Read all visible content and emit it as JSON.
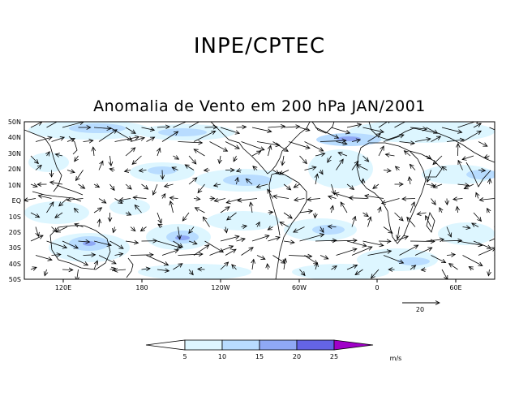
{
  "header": {
    "title": "INPE/CPTEC",
    "subtitle": "Anomalia de Vento em 200 hPa JAN/2001"
  },
  "map": {
    "lat_labels": [
      "50N",
      "40N",
      "30N",
      "20N",
      "10N",
      "EQ",
      "10S",
      "20S",
      "30S",
      "40S",
      "50S"
    ],
    "lon_labels": [
      "120E",
      "180",
      "120W",
      "60W",
      "0",
      "60E"
    ]
  },
  "reference_vector": {
    "label": "20"
  },
  "colorbar": {
    "ticks": [
      "5",
      "10",
      "15",
      "20",
      "25"
    ],
    "units": "m/s",
    "colors": [
      "#ffffff",
      "#ddf6ff",
      "#b8dcff",
      "#8fa8f5",
      "#6464e6",
      "#a000c8"
    ]
  },
  "colors": {
    "shade_light": "#ddf6ff",
    "shade_mid": "#b8dcff",
    "shade_dark": "#8fa8f5"
  }
}
